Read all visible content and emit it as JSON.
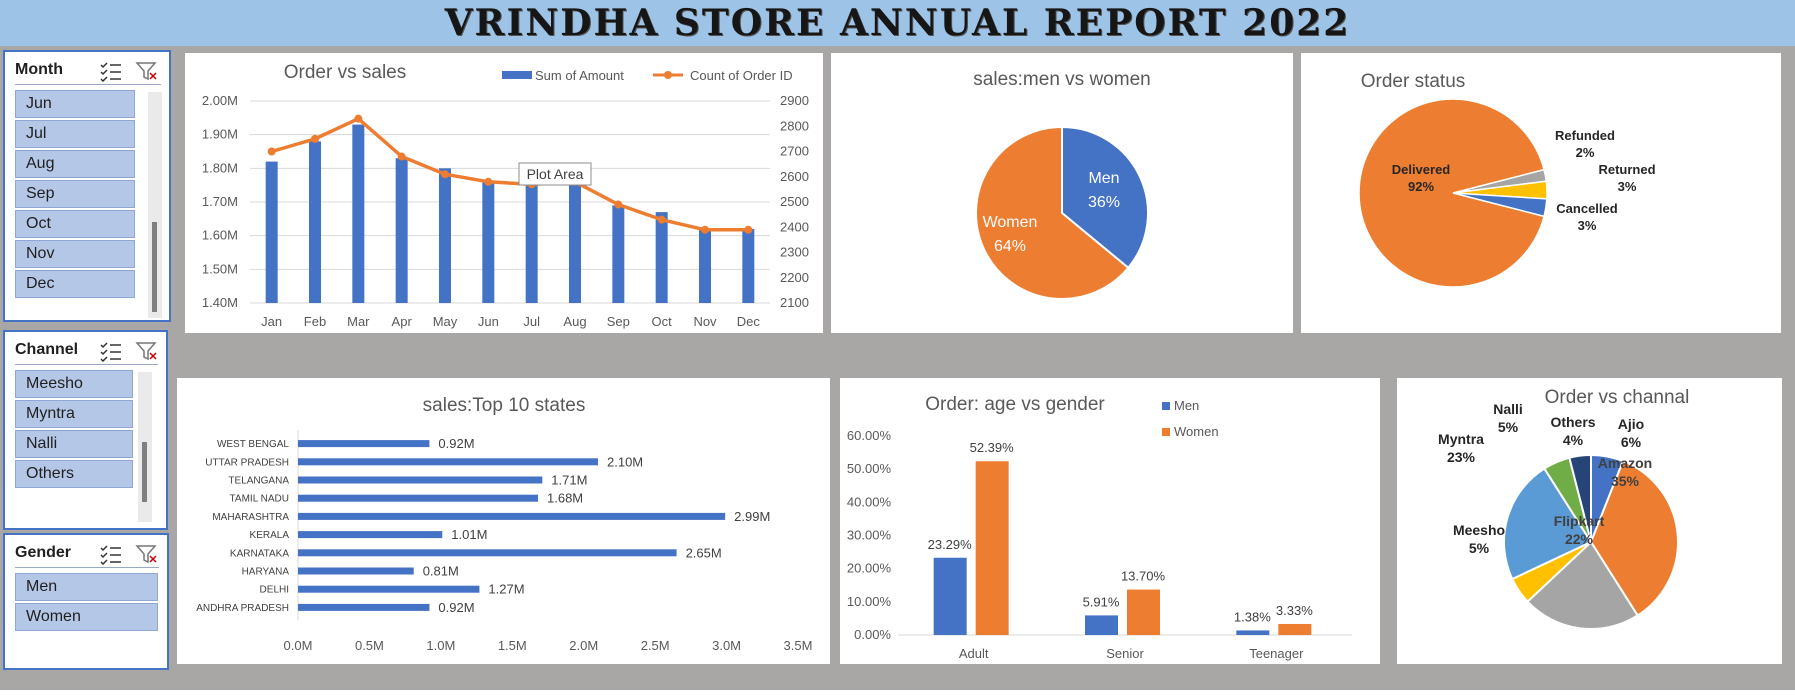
{
  "title": "VRINDHA STORE ANNUAL REPORT 2022",
  "colors": {
    "blue": "#4472c4",
    "orange": "#ed7d31",
    "grey": "#a5a5a5",
    "yellow": "#ffc000",
    "lightblue": "#5b9bd5",
    "green": "#70ad47",
    "navy": "#264478"
  },
  "slicers": {
    "month": {
      "title": "Month",
      "items": [
        "Jun",
        "Jul",
        "Aug",
        "Sep",
        "Oct",
        "Nov",
        "Dec"
      ]
    },
    "channel": {
      "title": "Channel",
      "items": [
        "Meesho",
        "Myntra",
        "Nalli",
        "Others"
      ]
    },
    "gender": {
      "title": "Gender",
      "items": [
        "Men",
        "Women"
      ]
    },
    "icons": {
      "multiselect": "multi-select-icon",
      "clear": "clear-filter-icon"
    }
  },
  "chart_data": [
    {
      "id": "order_vs_sales",
      "type": "bar-line combo",
      "title": "Order vs sales",
      "legend": [
        "Sum of Amount",
        "Count of Order ID"
      ],
      "legend_position": "top",
      "categories": [
        "Jan",
        "Feb",
        "Mar",
        "Apr",
        "May",
        "Jun",
        "Jul",
        "Aug",
        "Sep",
        "Oct",
        "Nov",
        "Dec"
      ],
      "series": [
        {
          "name": "Sum of Amount",
          "type": "bar",
          "axis": "left",
          "values": [
            1.82,
            1.88,
            1.93,
            1.83,
            1.8,
            1.76,
            1.75,
            1.75,
            1.69,
            1.67,
            1.62,
            1.62
          ]
        },
        {
          "name": "Count of Order ID",
          "type": "line",
          "axis": "right",
          "values": [
            2700,
            2750,
            2830,
            2680,
            2610,
            2580,
            2570,
            2580,
            2490,
            2430,
            2390,
            2390
          ]
        }
      ],
      "y_left": {
        "min": 1.4,
        "max": 2.0,
        "ticks": [
          "1.40M",
          "1.50M",
          "1.60M",
          "1.70M",
          "1.80M",
          "1.90M",
          "2.00M"
        ]
      },
      "y_right": {
        "min": 2100,
        "max": 2900,
        "ticks": [
          "2100",
          "2200",
          "2300",
          "2400",
          "2500",
          "2600",
          "2700",
          "2800",
          "2900"
        ]
      },
      "tooltip": "Plot Area"
    },
    {
      "id": "men_vs_women",
      "type": "pie",
      "title": "sales:men vs women",
      "slices": [
        {
          "label": "Men",
          "value": 36,
          "text": "36%"
        },
        {
          "label": "Women",
          "value": 64,
          "text": "64%"
        }
      ]
    },
    {
      "id": "order_status",
      "type": "pie",
      "title": "Order status",
      "slices": [
        {
          "label": "Delivered",
          "value": 92,
          "text": "92%"
        },
        {
          "label": "Refunded",
          "value": 2,
          "text": "2%"
        },
        {
          "label": "Returned",
          "value": 3,
          "text": "3%"
        },
        {
          "label": "Cancelled",
          "value": 3,
          "text": "3%"
        }
      ]
    },
    {
      "id": "top_states",
      "type": "bar",
      "orientation": "horizontal",
      "title": "sales:Top 10 states",
      "categories": [
        "WEST BENGAL",
        "UTTAR PRADESH",
        "TELANGANA",
        "TAMIL NADU",
        "MAHARASHTRA",
        "KERALA",
        "KARNATAKA",
        "HARYANA",
        "DELHI",
        "ANDHRA PRADESH"
      ],
      "values": [
        0.92,
        2.1,
        1.71,
        1.68,
        2.99,
        1.01,
        2.65,
        0.81,
        1.27,
        0.92
      ],
      "labels": [
        "0.92M",
        "2.10M",
        "1.71M",
        "1.68M",
        "2.99M",
        "1.01M",
        "2.65M",
        "0.81M",
        "1.27M",
        "0.92M"
      ],
      "xlim": [
        0,
        3.5
      ],
      "x_ticks": [
        "0.0M",
        "0.5M",
        "1.0M",
        "1.5M",
        "2.0M",
        "2.5M",
        "3.0M",
        "3.5M"
      ]
    },
    {
      "id": "age_vs_gender",
      "type": "bar",
      "title": "Order: age vs gender",
      "categories": [
        "Adult",
        "Senior",
        "Teenager"
      ],
      "series": [
        {
          "name": "Men",
          "values": [
            23.29,
            5.91,
            1.38
          ],
          "labels": [
            "23.29%",
            "5.91%",
            "1.38%"
          ]
        },
        {
          "name": "Women",
          "values": [
            52.39,
            13.7,
            3.33
          ],
          "labels": [
            "52.39%",
            "13.70%",
            "3.33%"
          ]
        }
      ],
      "ylim": [
        0,
        60
      ],
      "y_ticks": [
        "0.00%",
        "10.00%",
        "20.00%",
        "30.00%",
        "40.00%",
        "50.00%",
        "60.00%"
      ],
      "legend_position": "top-right"
    },
    {
      "id": "order_vs_channel",
      "type": "pie",
      "title": "Order vs channal",
      "slices": [
        {
          "label": "Ajio",
          "value": 6,
          "text": "6%"
        },
        {
          "label": "Amazon",
          "value": 35,
          "text": "35%"
        },
        {
          "label": "Flipkart",
          "value": 22,
          "text": "22%"
        },
        {
          "label": "Meesho",
          "value": 5,
          "text": "5%"
        },
        {
          "label": "Myntra",
          "value": 23,
          "text": "23%"
        },
        {
          "label": "Nalli",
          "value": 5,
          "text": "5%"
        },
        {
          "label": "Others",
          "value": 4,
          "text": "4%"
        }
      ]
    }
  ]
}
